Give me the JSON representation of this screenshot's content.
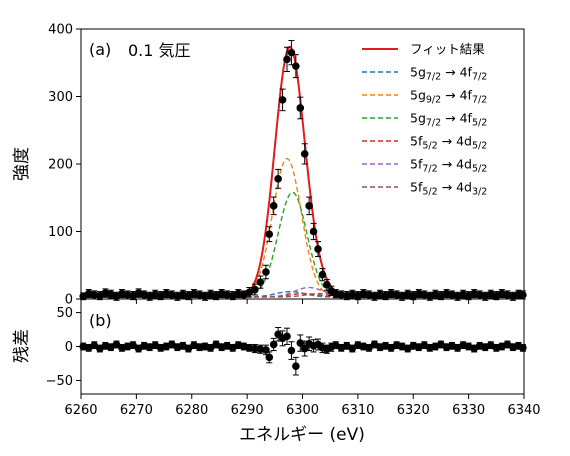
{
  "chart_data": [
    {
      "type": "line",
      "panel": "(a)",
      "annotation": "0.1 気圧",
      "ylabel": "強度",
      "xlim": [
        6260,
        6340
      ],
      "ylim": [
        0,
        400
      ],
      "xticks": [
        "6260",
        "6270",
        "6280",
        "6290",
        "6300",
        "6310",
        "6320",
        "6330",
        "6340"
      ],
      "yticks": [
        "0",
        "100",
        "200",
        "300",
        "400"
      ],
      "grid": false,
      "legend_position": "top-right",
      "legend": [
        {
          "label": "フィット結果",
          "base": "",
          "sub1": "",
          "arrow": "",
          "base2": "",
          "sub2": "",
          "color": "#e41a1c",
          "style": "solid"
        },
        {
          "label": "",
          "base": "5g",
          "sub1": "7/2",
          "arrow": " → 4f",
          "base2": "",
          "sub2": "7/2",
          "color": "#1f77b4",
          "style": "dashed"
        },
        {
          "label": "",
          "base": "5g",
          "sub1": "9/2",
          "arrow": " → 4f",
          "base2": "",
          "sub2": "7/2",
          "color": "#ff7f0e",
          "style": "dashed"
        },
        {
          "label": "",
          "base": "5g",
          "sub1": "7/2",
          "arrow": " → 4f",
          "base2": "",
          "sub2": "5/2",
          "color": "#2ca02c",
          "style": "dashed"
        },
        {
          "label": "",
          "base": "5f",
          "sub1": "5/2",
          "arrow": " → 4d",
          "base2": "",
          "sub2": "5/2",
          "color": "#d62728",
          "style": "dashed"
        },
        {
          "label": "",
          "base": "5f",
          "sub1": "7/2",
          "arrow": " → 4d",
          "base2": "",
          "sub2": "5/2",
          "color": "#9467bd",
          "style": "dashed"
        },
        {
          "label": "",
          "base": "5f",
          "sub1": "5/2",
          "arrow": " → 4d",
          "base2": "",
          "sub2": "3/2",
          "color": "#8c564b",
          "style": "dashed"
        }
      ],
      "components": [
        {
          "center": 6297.8,
          "amplitude": 8,
          "sigma": 2.6,
          "color": "#1f77b4"
        },
        {
          "center": 6297.2,
          "amplitude": 205,
          "sigma": 2.6,
          "color": "#ff7f0e"
        },
        {
          "center": 6298.2,
          "amplitude": 155,
          "sigma": 2.6,
          "color": "#2ca02c"
        },
        {
          "center": 6300.3,
          "amplitude": 5,
          "sigma": 2.6,
          "color": "#d62728"
        },
        {
          "center": 6301.2,
          "amplitude": 14,
          "sigma": 2.6,
          "color": "#9467bd"
        },
        {
          "center": 6303.2,
          "amplitude": 5,
          "sigma": 2.6,
          "color": "#8c564b"
        }
      ],
      "fit_baseline": 3,
      "fit_color": "#e41a1c",
      "data_points": [
        [
          6260.4,
          4,
          5
        ],
        [
          6261.4,
          8,
          6
        ],
        [
          6262.4,
          6,
          6
        ],
        [
          6263.4,
          5,
          6
        ],
        [
          6264.4,
          9,
          6
        ],
        [
          6265.4,
          7,
          6
        ],
        [
          6266.4,
          4,
          6
        ],
        [
          6267.4,
          8,
          6
        ],
        [
          6268.4,
          6,
          6
        ],
        [
          6269.4,
          5,
          6
        ],
        [
          6270.4,
          9,
          6
        ],
        [
          6271.4,
          6,
          6
        ],
        [
          6272.4,
          4,
          6
        ],
        [
          6273.4,
          7,
          6
        ],
        [
          6274.4,
          5,
          6
        ],
        [
          6275.4,
          8,
          6
        ],
        [
          6276.4,
          6,
          6
        ],
        [
          6277.4,
          4,
          6
        ],
        [
          6278.4,
          7,
          6
        ],
        [
          6279.4,
          5,
          6
        ],
        [
          6280.4,
          8,
          6
        ],
        [
          6281.4,
          6,
          6
        ],
        [
          6282.4,
          4,
          6
        ],
        [
          6283.4,
          7,
          6
        ],
        [
          6284.4,
          5,
          6
        ],
        [
          6285.4,
          8,
          6
        ],
        [
          6286.4,
          6,
          6
        ],
        [
          6287.4,
          5,
          6
        ],
        [
          6288.4,
          8,
          6
        ],
        [
          6289.4,
          6,
          6
        ],
        [
          6290.4,
          10,
          7
        ],
        [
          6291.4,
          14,
          8
        ],
        [
          6292.4,
          25,
          9
        ],
        [
          6293.4,
          40,
          10
        ],
        [
          6294.0,
          96,
          11
        ],
        [
          6294.8,
          138,
          13
        ],
        [
          6295.6,
          178,
          14
        ],
        [
          6296.4,
          295,
          16
        ],
        [
          6297.2,
          355,
          18
        ],
        [
          6298.0,
          365,
          18
        ],
        [
          6298.8,
          345,
          17
        ],
        [
          6299.6,
          283,
          16
        ],
        [
          6300.4,
          215,
          15
        ],
        [
          6301.2,
          138,
          13
        ],
        [
          6302.0,
          100,
          12
        ],
        [
          6302.8,
          74,
          11
        ],
        [
          6303.6,
          36,
          9
        ],
        [
          6304.4,
          21,
          8
        ],
        [
          6305.2,
          12,
          7
        ],
        [
          6306.0,
          8,
          6
        ],
        [
          6307.0,
          6,
          6
        ],
        [
          6308.0,
          5,
          6
        ],
        [
          6309.0,
          7,
          6
        ],
        [
          6310.0,
          5,
          6
        ],
        [
          6311.0,
          8,
          6
        ],
        [
          6312.0,
          6,
          6
        ],
        [
          6313.0,
          4,
          6
        ],
        [
          6314.0,
          7,
          6
        ],
        [
          6315.0,
          5,
          6
        ],
        [
          6316.0,
          8,
          6
        ],
        [
          6317.0,
          6,
          6
        ],
        [
          6318.0,
          4,
          6
        ],
        [
          6319.0,
          7,
          6
        ],
        [
          6320.0,
          5,
          6
        ],
        [
          6321.0,
          8,
          6
        ],
        [
          6322.0,
          6,
          6
        ],
        [
          6323.0,
          4,
          6
        ],
        [
          6324.0,
          7,
          6
        ],
        [
          6325.0,
          5,
          6
        ],
        [
          6326.0,
          8,
          6
        ],
        [
          6327.0,
          6,
          6
        ],
        [
          6328.0,
          4,
          6
        ],
        [
          6329.0,
          7,
          6
        ],
        [
          6330.0,
          5,
          6
        ],
        [
          6331.0,
          8,
          6
        ],
        [
          6332.0,
          6,
          6
        ],
        [
          6333.0,
          4,
          6
        ],
        [
          6334.0,
          7,
          6
        ],
        [
          6335.0,
          5,
          6
        ],
        [
          6336.0,
          8,
          6
        ],
        [
          6337.0,
          6,
          6
        ],
        [
          6338.0,
          4,
          6
        ],
        [
          6339.0,
          7,
          6
        ],
        [
          6339.8,
          6,
          6
        ]
      ]
    },
    {
      "type": "scatter",
      "panel": "(b)",
      "ylabel": "残差",
      "xlabel": "エネルギー (eV)",
      "xlim": [
        6260,
        6340
      ],
      "ylim": [
        -70,
        70
      ],
      "yticks": [
        "50",
        "0",
        "−50"
      ],
      "ytick_values": [
        50,
        0,
        -50
      ],
      "residuals": [
        [
          6260.4,
          0,
          5
        ],
        [
          6261.4,
          -2,
          5
        ],
        [
          6262.4,
          2,
          5
        ],
        [
          6263.4,
          -3,
          5
        ],
        [
          6264.4,
          1,
          5
        ],
        [
          6265.4,
          -1,
          5
        ],
        [
          6266.4,
          3,
          5
        ],
        [
          6267.4,
          -2,
          5
        ],
        [
          6268.4,
          0,
          5
        ],
        [
          6269.4,
          2,
          5
        ],
        [
          6270.4,
          -3,
          5
        ],
        [
          6271.4,
          1,
          5
        ],
        [
          6272.4,
          -1,
          5
        ],
        [
          6273.4,
          2,
          5
        ],
        [
          6274.4,
          -2,
          5
        ],
        [
          6275.4,
          0,
          5
        ],
        [
          6276.4,
          3,
          5
        ],
        [
          6277.4,
          -1,
          5
        ],
        [
          6278.4,
          1,
          5
        ],
        [
          6279.4,
          -3,
          5
        ],
        [
          6280.4,
          2,
          5
        ],
        [
          6281.4,
          -1,
          5
        ],
        [
          6282.4,
          0,
          5
        ],
        [
          6283.4,
          -2,
          5
        ],
        [
          6284.4,
          3,
          5
        ],
        [
          6285.4,
          -1,
          5
        ],
        [
          6286.4,
          1,
          5
        ],
        [
          6287.4,
          -2,
          5
        ],
        [
          6288.4,
          2,
          5
        ],
        [
          6289.4,
          0,
          5
        ],
        [
          6290.4,
          -2,
          5
        ],
        [
          6291.4,
          -3,
          6
        ],
        [
          6292.4,
          -4,
          6
        ],
        [
          6293.4,
          -5,
          7
        ],
        [
          6294.0,
          -16,
          8
        ],
        [
          6294.8,
          3,
          9
        ],
        [
          6295.6,
          18,
          10
        ],
        [
          6296.4,
          12,
          11
        ],
        [
          6297.2,
          15,
          12
        ],
        [
          6298.0,
          -6,
          13
        ],
        [
          6298.8,
          -29,
          13
        ],
        [
          6299.6,
          5,
          12
        ],
        [
          6300.4,
          -3,
          11
        ],
        [
          6301.2,
          4,
          10
        ],
        [
          6302.0,
          1,
          9
        ],
        [
          6302.8,
          3,
          8
        ],
        [
          6303.6,
          -2,
          7
        ],
        [
          6304.4,
          -4,
          6
        ],
        [
          6305.2,
          -1,
          6
        ],
        [
          6306.0,
          2,
          5
        ],
        [
          6307.0,
          -2,
          5
        ],
        [
          6308.0,
          1,
          5
        ],
        [
          6309.0,
          -3,
          5
        ],
        [
          6310.0,
          2,
          5
        ],
        [
          6311.0,
          0,
          5
        ],
        [
          6312.0,
          -2,
          5
        ],
        [
          6313.0,
          3,
          5
        ],
        [
          6314.0,
          -1,
          5
        ],
        [
          6315.0,
          1,
          5
        ],
        [
          6316.0,
          -2,
          5
        ],
        [
          6317.0,
          2,
          5
        ],
        [
          6318.0,
          0,
          5
        ],
        [
          6319.0,
          -3,
          5
        ],
        [
          6320.0,
          1,
          5
        ],
        [
          6321.0,
          -1,
          5
        ],
        [
          6322.0,
          2,
          5
        ],
        [
          6323.0,
          -2,
          5
        ],
        [
          6324.0,
          0,
          5
        ],
        [
          6325.0,
          3,
          5
        ],
        [
          6326.0,
          -1,
          5
        ],
        [
          6327.0,
          1,
          5
        ],
        [
          6328.0,
          -2,
          5
        ],
        [
          6329.0,
          2,
          5
        ],
        [
          6330.0,
          0,
          5
        ],
        [
          6331.0,
          -3,
          5
        ],
        [
          6332.0,
          1,
          5
        ],
        [
          6333.0,
          -1,
          5
        ],
        [
          6334.0,
          2,
          5
        ],
        [
          6335.0,
          -2,
          5
        ],
        [
          6336.0,
          0,
          5
        ],
        [
          6337.0,
          3,
          5
        ],
        [
          6338.0,
          -1,
          5
        ],
        [
          6339.0,
          1,
          5
        ],
        [
          6339.8,
          -2,
          5
        ]
      ]
    }
  ]
}
